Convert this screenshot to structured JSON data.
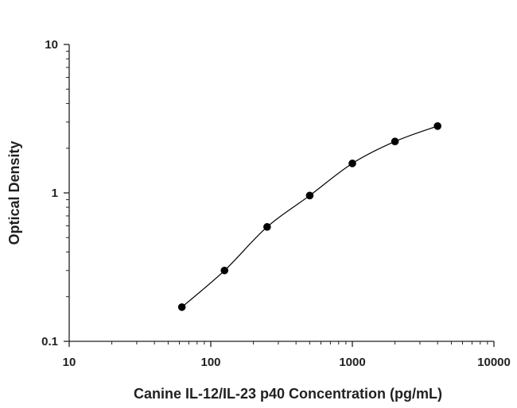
{
  "chart_data": {
    "type": "scatter",
    "title": "",
    "xlabel": "Canine IL-12/IL-23 p40 Concentration (pg/mL)",
    "ylabel": "Optical Density",
    "xscale": "log",
    "yscale": "log",
    "xlim": [
      10,
      10000
    ],
    "ylim": [
      0.1,
      10
    ],
    "xticks": [
      10,
      100,
      1000,
      10000
    ],
    "xtick_labels": [
      "10",
      "100",
      "1000",
      "10000"
    ],
    "yticks": [
      0.1,
      1,
      10
    ],
    "ytick_labels": [
      "0.1",
      "1",
      "10"
    ],
    "grid": false,
    "legend": "none",
    "fit_curve": true,
    "series": [
      {
        "x": [
          62.5,
          125,
          250,
          500,
          1000,
          2000,
          4000
        ],
        "y": [
          0.17,
          0.3,
          0.59,
          0.96,
          1.58,
          2.22,
          2.82
        ]
      }
    ],
    "colors": {
      "axis": "#231f20",
      "marker": "#000000",
      "curve": "#000000"
    }
  }
}
